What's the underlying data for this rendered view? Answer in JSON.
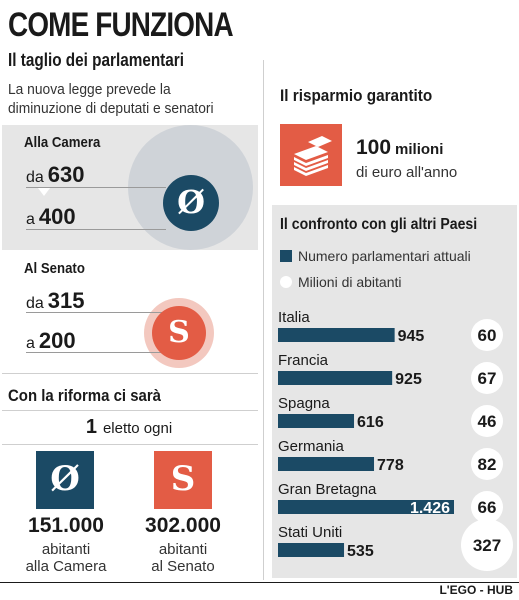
{
  "header": {
    "title": "COME FUNZIONA",
    "subtitle": "Il taglio dei parlamentari",
    "intro": "La nuova legge prevede la diminuzione di deputati e senatori"
  },
  "camera": {
    "label": "Alla Camera",
    "from_pre": "da",
    "from_value": "630",
    "to_pre": "a",
    "to_value": "400"
  },
  "senato": {
    "label": "Al Senato",
    "from_pre": "da",
    "from_value": "315",
    "to_pre": "a",
    "to_value": "200"
  },
  "riforma": {
    "title": "Con la riforma ci sarà",
    "one": "1",
    "eletto": "eletto ogni",
    "camera_value": "151.000",
    "camera_text_1": "abitanti",
    "camera_text_2": "alla Camera",
    "senato_value": "302.000",
    "senato_text_1": "abitanti",
    "senato_text_2": "al Senato"
  },
  "risparmio": {
    "title": "Il risparmio garantito",
    "amount": "100",
    "unit": "milioni",
    "text": "di euro all'anno"
  },
  "confronto": {
    "title": "Il confronto con gli altri Paesi",
    "legend_bar": "Numero parlamentari attuali",
    "legend_dot": "Milioni di abitanti"
  },
  "chart_data": {
    "type": "bar",
    "title": "Il confronto con gli altri Paesi",
    "categories": [
      "Italia",
      "Francia",
      "Spagna",
      "Germania",
      "Gran Bretagna",
      "Stati Uniti"
    ],
    "series": [
      {
        "name": "Numero parlamentari attuali",
        "values": [
          945,
          925,
          616,
          778,
          1426,
          535
        ],
        "labels": [
          "945",
          "925",
          "616",
          "778",
          "1.426",
          "535"
        ]
      },
      {
        "name": "Milioni di abitanti",
        "values": [
          60,
          67,
          46,
          82,
          66,
          327
        ],
        "labels": [
          "60",
          "67",
          "46",
          "82",
          "66",
          "327"
        ]
      }
    ]
  },
  "colors": {
    "navy": "#1b4a65",
    "red": "#e35c45",
    "panel": "#e6e6e6",
    "camera_halo": "#cfd3d8",
    "senato_halo": "#f3c8bf"
  },
  "credit": "L'EGO - HUB"
}
